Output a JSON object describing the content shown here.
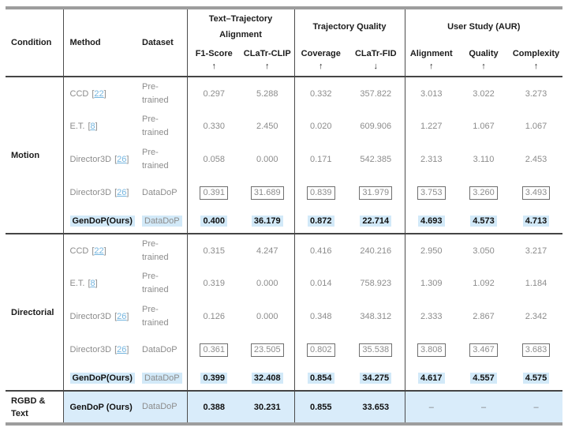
{
  "symbols": {
    "lb": "[",
    "rb": "]"
  },
  "colors": {
    "highlight": "#d2e9f8",
    "bottom_row_fill": "#d9ecfa",
    "citation_blue": "#74b5df",
    "gray_text": "#8c8c8c",
    "rule_dark": "#454545",
    "outer_border": "#9d9d9d"
  },
  "header": {
    "condition": "Condition",
    "method": "Method",
    "dataset": "Dataset",
    "groups": [
      {
        "label": "Text–Trajectory Alignment",
        "cols": [
          {
            "label": "F1-Score",
            "arrow": "↑"
          },
          {
            "label": "CLaTr-CLIP",
            "arrow": "↑"
          }
        ]
      },
      {
        "label": "Trajectory Quality",
        "cols": [
          {
            "label": "Coverage",
            "arrow": "↑"
          },
          {
            "label": "CLaTr-FID",
            "arrow": "↓"
          }
        ]
      },
      {
        "label": "User Study (AUR)",
        "cols": [
          {
            "label": "Alignment",
            "arrow": "↑"
          },
          {
            "label": "Quality",
            "arrow": "↑"
          },
          {
            "label": "Complexity",
            "arrow": "↑"
          }
        ]
      }
    ]
  },
  "sections": [
    {
      "condition": "Motion",
      "rows": [
        {
          "method": "CCD",
          "cite": "22",
          "dataset": "Pre-trained",
          "f1": "0.297",
          "clip": "5.288",
          "coverage": "0.332",
          "fid": "357.822",
          "align": "3.013",
          "quality": "3.022",
          "complexity": "3.273"
        },
        {
          "method": "E.T.",
          "cite": "8",
          "dataset": "Pre-trained",
          "f1": "0.330",
          "clip": "2.450",
          "coverage": "0.020",
          "fid": "609.906",
          "align": "1.227",
          "quality": "1.067",
          "complexity": "1.067"
        },
        {
          "method": "Director3D",
          "cite": "26",
          "dataset": "Pre-trained",
          "f1": "0.058",
          "clip": "0.000",
          "coverage": "0.171",
          "fid": "542.385",
          "align": "2.313",
          "quality": "3.110",
          "complexity": "2.453"
        },
        {
          "method": "Director3D",
          "cite": "26",
          "dataset": "DataDoP",
          "f1": "0.391",
          "clip": "31.689",
          "coverage": "0.839",
          "fid": "31.979",
          "align": "3.753",
          "quality": "3.260",
          "complexity": "3.493"
        },
        {
          "method": "GenDoP(Ours)",
          "dataset": "DataDoP",
          "f1": "0.400",
          "clip": "36.179",
          "coverage": "0.872",
          "fid": "22.714",
          "align": "4.693",
          "quality": "4.573",
          "complexity": "4.713"
        }
      ]
    },
    {
      "condition": "Directorial",
      "rows": [
        {
          "method": "CCD",
          "cite": "22",
          "dataset": "Pre-trained",
          "f1": "0.315",
          "clip": "4.247",
          "coverage": "0.416",
          "fid": "240.216",
          "align": "2.950",
          "quality": "3.050",
          "complexity": "3.217"
        },
        {
          "method": "E.T.",
          "cite": "8",
          "dataset": "Pre-trained",
          "f1": "0.319",
          "clip": "0.000",
          "coverage": "0.014",
          "fid": "758.923",
          "align": "1.309",
          "quality": "1.092",
          "complexity": "1.184"
        },
        {
          "method": "Director3D",
          "cite": "26",
          "dataset": "Pre-trained",
          "f1": "0.126",
          "clip": "0.000",
          "coverage": "0.348",
          "fid": "348.312",
          "align": "2.333",
          "quality": "2.867",
          "complexity": "2.342"
        },
        {
          "method": "Director3D",
          "cite": "26",
          "dataset": "DataDoP",
          "f1": "0.361",
          "clip": "23.505",
          "coverage": "0.802",
          "fid": "35.538",
          "align": "3.808",
          "quality": "3.467",
          "complexity": "3.683"
        },
        {
          "method": "GenDoP(Ours)",
          "dataset": "DataDoP",
          "f1": "0.399",
          "clip": "32.408",
          "coverage": "0.854",
          "fid": "34.275",
          "align": "4.617",
          "quality": "4.557",
          "complexity": "4.575"
        }
      ]
    },
    {
      "condition": "RGBD & Text",
      "rows": [
        {
          "method": "GenDoP (Ours)",
          "dataset": "DataDoP",
          "f1": "0.388",
          "clip": "30.231",
          "coverage": "0.855",
          "fid": "33.653",
          "align": "–",
          "quality": "–",
          "complexity": "–"
        }
      ]
    }
  ]
}
